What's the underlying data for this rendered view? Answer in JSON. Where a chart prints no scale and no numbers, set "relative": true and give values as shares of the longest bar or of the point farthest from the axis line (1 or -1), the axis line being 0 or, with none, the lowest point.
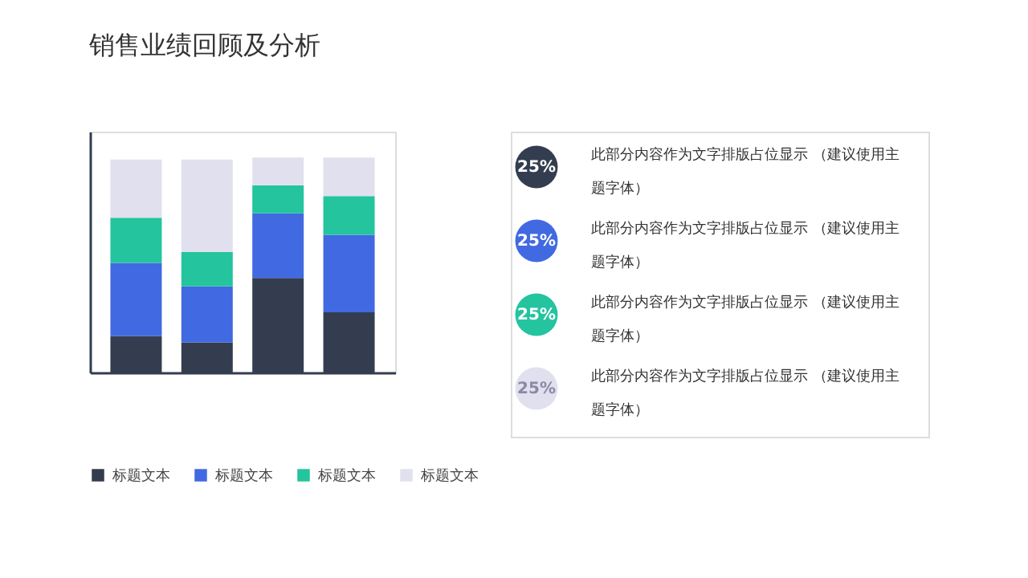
{
  "chart_data": [
    {
      "type": "bar",
      "title": "销售业绩回顾及分析",
      "stacked": true,
      "relative": true,
      "categories": [
        null,
        null,
        null,
        null
      ],
      "series": [
        {
          "name": "标题文本",
          "color": "#333d4f",
          "values": [
            0.17,
            0.14,
            0.44,
            0.28
          ]
        },
        {
          "name": "标题文本",
          "color": "#4169e1",
          "values": [
            0.34,
            0.26,
            0.3,
            0.36
          ]
        },
        {
          "name": "标题文本",
          "color": "#24c49f",
          "values": [
            0.21,
            0.16,
            0.13,
            0.18
          ]
        },
        {
          "name": "标题文本",
          "color": "#e1e0ee",
          "values": [
            0.27,
            0.43,
            0.13,
            0.18
          ]
        }
      ],
      "legend": "bottom",
      "grid": false
    },
    {
      "type": "other",
      "colors": [
        "#333d4f",
        "#4169e1",
        "#24c49f",
        "#e1e0ee"
      ],
      "annotations": [
        "25%",
        "此部分内容作为文字排版占位显示 （建议使用主题字体）",
        "25%",
        "此部分内容作为文字排版占位显示 （建议使用主题字体）",
        "25%",
        "此部分内容作为文字排版占位显示 （建议使用主题字体）",
        "25%",
        "此部分内容作为文字排版占位显示 （建议使用主题字体）"
      ]
    }
  ]
}
